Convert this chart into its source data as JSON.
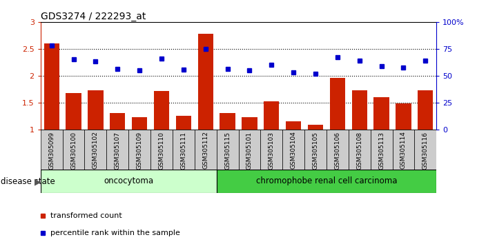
{
  "title": "GDS3274 / 222293_at",
  "samples": [
    "GSM305099",
    "GSM305100",
    "GSM305102",
    "GSM305107",
    "GSM305109",
    "GSM305110",
    "GSM305111",
    "GSM305112",
    "GSM305115",
    "GSM305101",
    "GSM305103",
    "GSM305104",
    "GSM305105",
    "GSM305106",
    "GSM305108",
    "GSM305113",
    "GSM305114",
    "GSM305116"
  ],
  "transformed_count": [
    2.6,
    1.67,
    1.73,
    1.3,
    1.22,
    1.72,
    1.25,
    2.78,
    1.3,
    1.22,
    1.52,
    1.15,
    1.08,
    1.96,
    1.73,
    1.6,
    1.48,
    1.73
  ],
  "percentile_rank": [
    2.56,
    2.3,
    2.27,
    2.12,
    2.1,
    2.32,
    2.11,
    2.5,
    2.12,
    2.1,
    2.2,
    2.06,
    2.03,
    2.34,
    2.28,
    2.18,
    2.15,
    2.28
  ],
  "bar_color": "#cc2200",
  "dot_color": "#0000cc",
  "group1_label": "oncocytoma",
  "group1_count": 8,
  "group2_label": "chromophobe renal cell carcinoma",
  "group2_count": 10,
  "ylim": [
    1.0,
    3.0
  ],
  "yticks_left": [
    1.0,
    1.5,
    2.0,
    2.5,
    3.0
  ],
  "yticks_right_vals": [
    1.0,
    1.5,
    2.0,
    2.5,
    3.0
  ],
  "yticks_right_labels": [
    "0",
    "25",
    "50",
    "75",
    "100%"
  ],
  "disease_state_label": "disease state",
  "legend_bar_label": "transformed count",
  "legend_dot_label": "percentile rank within the sample",
  "group_bg1": "#ccffcc",
  "group_bg2": "#44cc44",
  "tick_area_bg": "#cccccc"
}
